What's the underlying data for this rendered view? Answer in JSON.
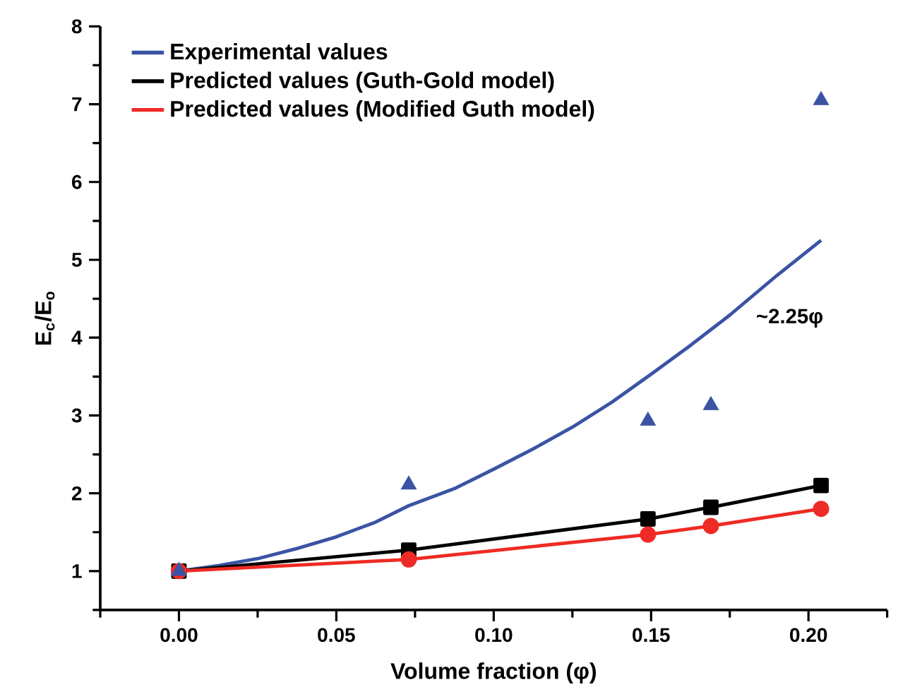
{
  "chart_data": {
    "type": "line",
    "xlabel": "Volume fraction (φ)",
    "ylabel": "E$_{c}$/E$_{o}$",
    "xlim": [
      -0.025,
      0.225
    ],
    "ylim": [
      0.5,
      8
    ],
    "xticks": [
      {
        "value": -0.025,
        "label": null
      },
      {
        "value": 0,
        "label": "0.00"
      },
      {
        "value": 0.025,
        "label": null
      },
      {
        "value": 0.05,
        "label": "0.05"
      },
      {
        "value": 0.075,
        "label": null
      },
      {
        "value": 0.1,
        "label": "0.10"
      },
      {
        "value": 0.125,
        "label": null
      },
      {
        "value": 0.15,
        "label": "0.15"
      },
      {
        "value": 0.175,
        "label": null
      },
      {
        "value": 0.2,
        "label": "0.20"
      },
      {
        "value": 0.225,
        "label": null
      }
    ],
    "yticks": [
      {
        "value": 0.5,
        "label": null
      },
      1,
      {
        "value": 1.5,
        "label": null
      },
      2,
      {
        "value": 2.5,
        "label": null
      },
      3,
      {
        "value": 3.5,
        "label": null
      },
      4,
      {
        "value": 4.5,
        "label": null
      },
      5,
      {
        "value": 5.5,
        "label": null
      },
      6,
      {
        "value": 6.5,
        "label": null
      },
      7,
      {
        "value": 7.5,
        "label": null
      },
      8
    ],
    "legend": "top left",
    "annotations": [
      "~2.25φ"
    ],
    "series": [
      {
        "name": "Experimental values",
        "color": "#3a53a4",
        "marker": "none",
        "x": [
          0,
          0.0125,
          0.025,
          0.0375,
          0.05,
          0.0625,
          0.073,
          0.0875,
          0.1,
          0.1125,
          0.125,
          0.1375,
          0.15,
          0.1625,
          0.175,
          0.19,
          0.204
        ],
        "values": [
          1.0,
          1.07,
          1.16,
          1.29,
          1.44,
          1.63,
          1.84,
          2.06,
          2.31,
          2.57,
          2.85,
          3.17,
          3.53,
          3.9,
          4.29,
          4.8,
          5.25
        ]
      },
      {
        "name": "Predicted values (Guth-Gold model)",
        "color": "#000000",
        "marker": "square",
        "x": [
          0,
          0.073,
          0.149,
          0.169,
          0.204
        ],
        "values": [
          1.0,
          1.27,
          1.67,
          1.82,
          2.1
        ]
      },
      {
        "name": "Predicted values (Modified Guth model)",
        "color": "#ee2b24",
        "marker": "circle",
        "x": [
          0,
          0.073,
          0.149,
          0.169,
          0.204
        ],
        "values": [
          1.0,
          1.15,
          1.47,
          1.58,
          1.8
        ]
      },
      {
        "type": "scatter",
        "color": "#3a53a4",
        "marker": "triangle",
        "x": [
          0,
          0.073,
          0.149,
          0.169,
          0.204
        ],
        "values": [
          1.0,
          2.11,
          2.93,
          3.13,
          7.05
        ]
      }
    ]
  }
}
